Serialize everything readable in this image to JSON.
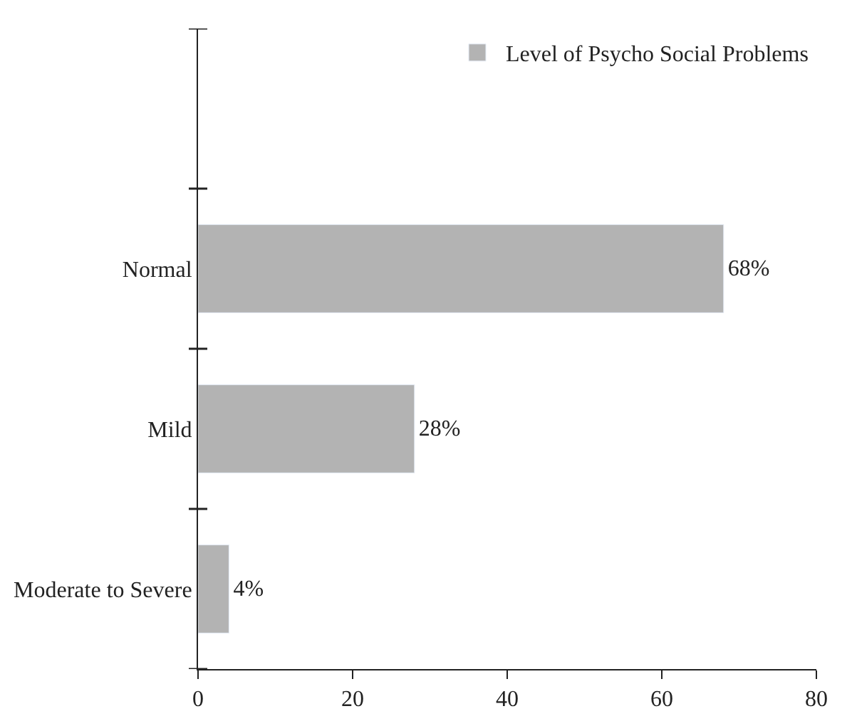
{
  "chart_data": {
    "type": "bar",
    "orientation": "horizontal",
    "categories": [
      "Normal",
      "Mild",
      "Moderate to Severe"
    ],
    "series": [
      {
        "name": "Level of Psycho Social Problems",
        "color": "#b3b3b3",
        "values": [
          68,
          28,
          4
        ],
        "value_labels": [
          "68%",
          "28%",
          "4%"
        ]
      }
    ],
    "xlim": [
      0,
      80
    ],
    "xticks": [
      0,
      20,
      40,
      60,
      80
    ],
    "legend": "top right"
  }
}
